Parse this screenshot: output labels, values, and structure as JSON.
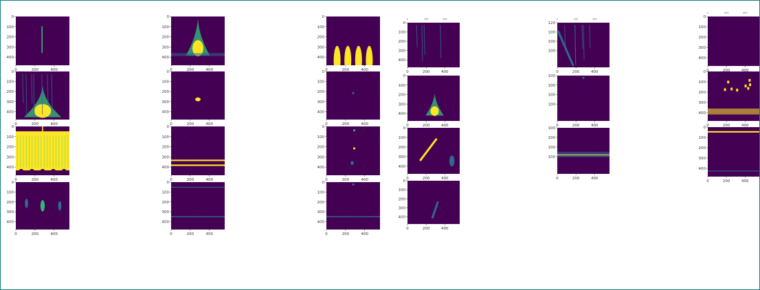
{
  "window": {
    "frame_color": "#0f7f7f"
  },
  "colors": {
    "background": "#440154",
    "texture": "#3b0f70",
    "mid": "#31688e",
    "bright": "#fde725",
    "green": "#35b779"
  },
  "chart_data": {
    "type": "heatmap",
    "colormap": "viridis",
    "grid": false,
    "x_ticks": [
      "0",
      "200",
      "400"
    ],
    "y_ticks": [
      "0",
      "100",
      "200",
      "300",
      "400"
    ],
    "top_ticks": [
      "0",
      "200",
      "400"
    ],
    "panels": [
      {
        "id": "c1-r1",
        "features": [
          {
            "kind": "vline",
            "x": 0.49,
            "y0": 0.2,
            "y1": 0.75,
            "color": "green"
          }
        ]
      },
      {
        "id": "c1-r2",
        "features": [
          {
            "kind": "cone",
            "x": 0.5,
            "top": 0.3,
            "bottom": 0.95,
            "width": 0.7,
            "color": "bright"
          },
          {
            "kind": "streaks",
            "count": 7,
            "color": "mid"
          }
        ]
      },
      {
        "id": "c1-r3",
        "features": [
          {
            "kind": "fill",
            "top": 0.1,
            "bottom": 0.9,
            "color": "bright"
          },
          {
            "kind": "vline",
            "x": 0.5,
            "y0": 0.0,
            "y1": 0.3,
            "color": "bright"
          }
        ]
      },
      {
        "id": "c1-r4",
        "features": [
          {
            "kind": "blob",
            "x": 0.5,
            "y": 0.5,
            "rx": 0.04,
            "ry": 0.12,
            "color": "green"
          },
          {
            "kind": "blob",
            "x": 0.2,
            "y": 0.45,
            "rx": 0.03,
            "ry": 0.1,
            "color": "mid"
          },
          {
            "kind": "blob",
            "x": 0.82,
            "y": 0.5,
            "rx": 0.03,
            "ry": 0.1,
            "color": "mid"
          }
        ]
      },
      {
        "id": "c2-r1",
        "features": [
          {
            "kind": "cone",
            "x": 0.5,
            "top": 0.05,
            "bottom": 0.8,
            "width": 0.45,
            "color": "bright"
          },
          {
            "kind": "band",
            "y": 0.75,
            "h": 0.06,
            "color": "mid"
          }
        ]
      },
      {
        "id": "c2-r2",
        "features": [
          {
            "kind": "blob",
            "x": 0.5,
            "y": 0.58,
            "rx": 0.05,
            "ry": 0.04,
            "color": "bright"
          }
        ]
      },
      {
        "id": "c2-r3",
        "features": [
          {
            "kind": "hline",
            "y": 0.68,
            "h": 0.03,
            "color": "bright"
          },
          {
            "kind": "hline",
            "y": 0.78,
            "h": 0.03,
            "color": "bright"
          }
        ]
      },
      {
        "id": "c2-r4",
        "features": [
          {
            "kind": "hline",
            "y": 0.72,
            "h": 0.02,
            "color": "mid"
          },
          {
            "kind": "hline",
            "y": 0.1,
            "h": 0.015,
            "color": "mid"
          }
        ]
      },
      {
        "id": "c3-r1",
        "features": [
          {
            "kind": "humps",
            "count": 4,
            "y": 0.9,
            "h": 0.3,
            "color": "bright"
          }
        ]
      },
      {
        "id": "c3-r2",
        "features": [
          {
            "kind": "dot",
            "x": 0.5,
            "y": 0.45,
            "color": "mid"
          }
        ]
      },
      {
        "id": "c3-r3",
        "features": [
          {
            "kind": "dot",
            "x": 0.52,
            "y": 0.45,
            "color": "bright"
          },
          {
            "kind": "dot",
            "x": 0.52,
            "y": 0.08,
            "color": "green"
          },
          {
            "kind": "blob",
            "x": 0.48,
            "y": 0.75,
            "rx": 0.03,
            "ry": 0.04,
            "color": "mid"
          }
        ]
      },
      {
        "id": "c3-r4",
        "features": [
          {
            "kind": "hline",
            "y": 0.72,
            "h": 0.02,
            "color": "mid"
          },
          {
            "kind": "dot",
            "x": 0.5,
            "y": 0.05,
            "color": "mid"
          }
        ]
      },
      {
        "id": "c4-r1",
        "features": [
          {
            "kind": "streaks",
            "count": 4,
            "color": "mid"
          }
        ]
      },
      {
        "id": "c4-r2",
        "features": [
          {
            "kind": "cone",
            "x": 0.52,
            "top": 0.4,
            "bottom": 0.88,
            "width": 0.35,
            "color": "bright"
          }
        ]
      },
      {
        "id": "c4-r3",
        "features": [
          {
            "kind": "diag",
            "x0": 0.55,
            "y0": 0.25,
            "x1": 0.25,
            "y1": 0.7,
            "color": "bright"
          },
          {
            "kind": "blob",
            "x": 0.85,
            "y": 0.72,
            "rx": 0.05,
            "ry": 0.12,
            "color": "mid"
          }
        ]
      },
      {
        "id": "c4-r4",
        "features": [
          {
            "kind": "diag",
            "x0": 0.58,
            "y0": 0.5,
            "x1": 0.48,
            "y1": 0.85,
            "color": "mid"
          }
        ]
      },
      {
        "id": "c5-r1",
        "features": [
          {
            "kind": "streaks",
            "count": 6,
            "color": "mid"
          },
          {
            "kind": "diag",
            "x0": 0.02,
            "y0": 0.2,
            "x1": 0.3,
            "y1": 0.95,
            "color": "mid"
          }
        ]
      },
      {
        "id": "c5-r2",
        "features": [
          {
            "kind": "dot",
            "x": 0.5,
            "y": 0.05,
            "color": "mid"
          }
        ]
      },
      {
        "id": "c5-r3",
        "features": [
          {
            "kind": "hline",
            "y": 0.57,
            "h": 0.035,
            "color": "bright"
          },
          {
            "kind": "band",
            "y": 0.52,
            "h": 0.12,
            "color": "mid"
          }
        ]
      },
      {
        "id": "c6-r1",
        "features": []
      },
      {
        "id": "c6-r2",
        "features": [
          {
            "kind": "scatter",
            "y": 0.25,
            "count": 8,
            "color": "bright"
          },
          {
            "kind": "band",
            "y": 0.75,
            "h": 0.12,
            "color": "bright"
          }
        ]
      },
      {
        "id": "c6-r3",
        "features": [
          {
            "kind": "hline",
            "y": 0.08,
            "h": 0.03,
            "color": "bright"
          },
          {
            "kind": "hline",
            "y": 0.88,
            "h": 0.015,
            "color": "mid"
          }
        ]
      }
    ]
  }
}
